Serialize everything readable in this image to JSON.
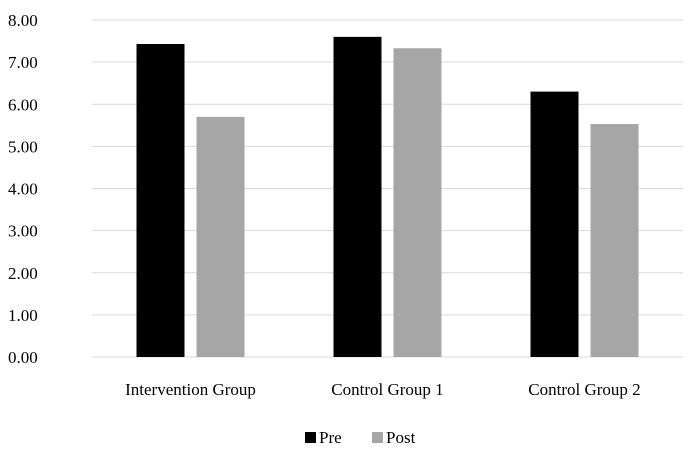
{
  "chart_data": {
    "type": "bar",
    "categories": [
      "Intervention Group",
      "Control Group 1",
      "Control Group 2"
    ],
    "series": [
      {
        "name": "Pre",
        "color": "#000000",
        "values": [
          7.43,
          7.6,
          6.3
        ]
      },
      {
        "name": "Post",
        "color": "#a6a6a6",
        "values": [
          5.7,
          7.33,
          5.53
        ]
      }
    ],
    "ylim": [
      0,
      8
    ],
    "yticks": [
      "0.00",
      "1.00",
      "2.00",
      "3.00",
      "4.00",
      "5.00",
      "6.00",
      "7.00",
      "8.00"
    ],
    "grid": true,
    "legend_position": "bottom"
  }
}
